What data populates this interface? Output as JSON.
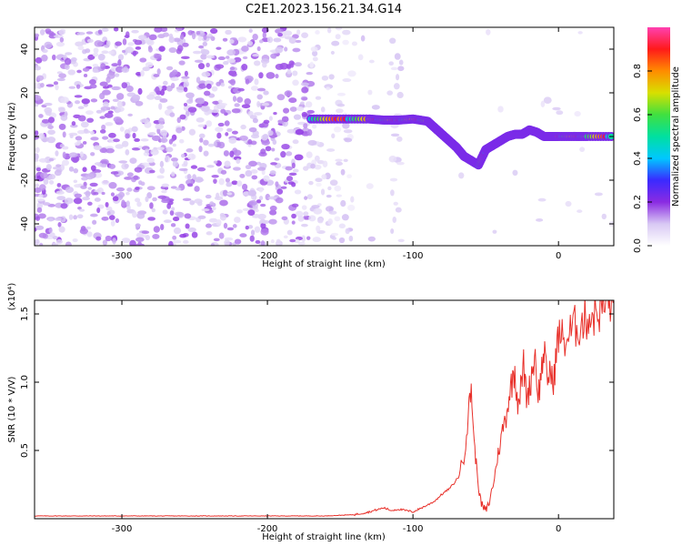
{
  "figure": {
    "title": "C2E1.2023.156.21.34.G14"
  },
  "chart_data": [
    {
      "type": "heatmap",
      "xlabel": "Height of straight line (km)",
      "ylabel": "Frequency (Hz)",
      "xlim": [
        -360,
        38
      ],
      "ylim": [
        -50,
        50
      ],
      "xticks": [
        -300,
        -200,
        -100,
        0
      ],
      "yticks": [
        -40,
        -20,
        0,
        20,
        40
      ],
      "grid": false,
      "colormap": {
        "label": "Normalized spectral amplitude",
        "range": [
          0.0,
          1.0
        ],
        "ticks": [
          0.0,
          0.2,
          0.4,
          0.6,
          0.8
        ],
        "stops": [
          "#ffffff",
          "#d8c8f4",
          "#8a2be2",
          "#3a2aff",
          "#00c8ff",
          "#00e0a0",
          "#40e040",
          "#d8e000",
          "#ff8c00",
          "#ff1a1a",
          "#ff40b0"
        ]
      },
      "ridge": {
        "x": [
          -170,
          -150,
          -130,
          -120,
          -110,
          -100,
          -90,
          -85,
          -80,
          -75,
          -70,
          -65,
          -60,
          -55,
          -50,
          -45,
          -40,
          -35,
          -30,
          -25,
          -20,
          -15,
          -10,
          -5,
          0,
          10,
          20,
          38
        ],
        "y": [
          8,
          8,
          8,
          7.5,
          7.5,
          8,
          7,
          4,
          1,
          -2,
          -5,
          -9,
          -11,
          -13,
          -6,
          -4,
          -2,
          0,
          1,
          1,
          3,
          2,
          0,
          0,
          0,
          0,
          0,
          0
        ]
      }
    },
    {
      "type": "line",
      "xlabel": "Height of straight line (km)",
      "ylabel": "SNR (10 * V/V)",
      "yscale_label": "(x10⁴)",
      "xlim": [
        -360,
        38
      ],
      "ylim": [
        0,
        1.6
      ],
      "xticks": [
        -300,
        -200,
        -100,
        0
      ],
      "yticks": [
        0.5,
        1.0,
        1.5
      ],
      "grid": false,
      "series": [
        {
          "color": "#e8302a",
          "x": [
            -360,
            -340,
            -320,
            -300,
            -280,
            -260,
            -240,
            -220,
            -200,
            -180,
            -160,
            -140,
            -130,
            -120,
            -115,
            -110,
            -100,
            -90,
            -85,
            -80,
            -75,
            -70,
            -65,
            -62,
            -60,
            -58,
            -56,
            -54,
            -52,
            -50,
            -48,
            -46,
            -44,
            -42,
            -40,
            -38,
            -36,
            -34,
            -32,
            -30,
            -28,
            -26,
            -24,
            -22,
            -20,
            -18,
            -16,
            -14,
            -12,
            -10,
            -8,
            -6,
            -4,
            -2,
            0,
            5,
            10,
            15,
            20,
            25,
            30,
            35,
            38
          ],
          "y": [
            0.02,
            0.02,
            0.02,
            0.02,
            0.02,
            0.02,
            0.02,
            0.02,
            0.02,
            0.02,
            0.02,
            0.03,
            0.05,
            0.08,
            0.06,
            0.07,
            0.05,
            0.1,
            0.13,
            0.18,
            0.22,
            0.28,
            0.45,
            0.75,
            0.98,
            0.55,
            0.35,
            0.15,
            0.08,
            0.06,
            0.1,
            0.2,
            0.3,
            0.45,
            0.55,
            0.68,
            0.75,
            0.9,
            1.0,
            1.1,
            0.85,
            0.95,
            1.12,
            0.9,
            0.95,
            1.1,
            1.2,
            0.9,
            1.05,
            1.25,
            1.0,
            1.1,
            0.98,
            1.15,
            1.35,
            1.3,
            1.4,
            1.42,
            1.48,
            1.5,
            1.55,
            1.58,
            1.58
          ]
        }
      ]
    }
  ]
}
